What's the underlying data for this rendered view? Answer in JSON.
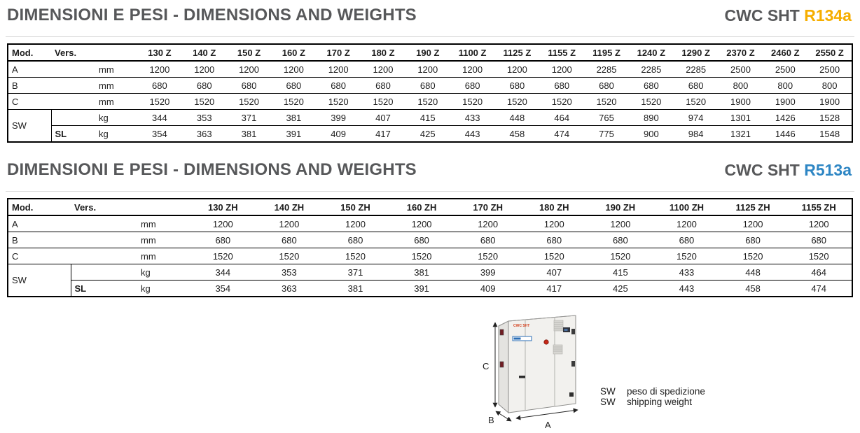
{
  "sections": [
    {
      "title": "DIMENSIONI E PESI - DIMENSIONS AND WEIGHTS",
      "product": "CWC SHT",
      "refrigerant": "R134a",
      "refrigerant_color": "#F6AE00",
      "table": {
        "col_mod": "Mod.",
        "col_vers": "Vers.",
        "models": [
          "130 Z",
          "140 Z",
          "150 Z",
          "160 Z",
          "170 Z",
          "180 Z",
          "190 Z",
          "1100 Z",
          "1125 Z",
          "1155 Z",
          "1195 Z",
          "1240 Z",
          "1290 Z",
          "2370 Z",
          "2460 Z",
          "2550 Z"
        ],
        "dimension_rows": [
          {
            "label": "A",
            "unit": "mm",
            "values": [
              1200,
              1200,
              1200,
              1200,
              1200,
              1200,
              1200,
              1200,
              1200,
              1200,
              2285,
              2285,
              2285,
              2500,
              2500,
              2500
            ]
          },
          {
            "label": "B",
            "unit": "mm",
            "values": [
              680,
              680,
              680,
              680,
              680,
              680,
              680,
              680,
              680,
              680,
              680,
              680,
              680,
              800,
              800,
              800
            ]
          },
          {
            "label": "C",
            "unit": "mm",
            "values": [
              1520,
              1520,
              1520,
              1520,
              1520,
              1520,
              1520,
              1520,
              1520,
              1520,
              1520,
              1520,
              1520,
              1900,
              1900,
              1900
            ]
          }
        ],
        "weight_group_label": "SW",
        "weight_rows": [
          {
            "version": "",
            "unit": "kg",
            "values": [
              344,
              353,
              371,
              381,
              399,
              407,
              415,
              433,
              448,
              464,
              765,
              890,
              974,
              1301,
              1426,
              1528
            ]
          },
          {
            "version": "SL",
            "unit": "kg",
            "values": [
              354,
              363,
              381,
              391,
              409,
              417,
              425,
              443,
              458,
              474,
              775,
              900,
              984,
              1321,
              1446,
              1548
            ]
          }
        ]
      }
    },
    {
      "title": "DIMENSIONI E PESI - DIMENSIONS AND WEIGHTS",
      "product": "CWC SHT",
      "refrigerant": "R513a",
      "refrigerant_color": "#2E86C4",
      "table": {
        "col_mod": "Mod.",
        "col_vers": "Vers.",
        "models": [
          "130 ZH",
          "140 ZH",
          "150 ZH",
          "160 ZH",
          "170 ZH",
          "180 ZH",
          "190 ZH",
          "1100 ZH",
          "1125 ZH",
          "1155 ZH"
        ],
        "dimension_rows": [
          {
            "label": "A",
            "unit": "mm",
            "values": [
              1200,
              1200,
              1200,
              1200,
              1200,
              1200,
              1200,
              1200,
              1200,
              1200
            ]
          },
          {
            "label": "B",
            "unit": "mm",
            "values": [
              680,
              680,
              680,
              680,
              680,
              680,
              680,
              680,
              680,
              680
            ]
          },
          {
            "label": "C",
            "unit": "mm",
            "values": [
              1520,
              1520,
              1520,
              1520,
              1520,
              1520,
              1520,
              1520,
              1520,
              1520
            ]
          }
        ],
        "weight_group_label": "SW",
        "weight_rows": [
          {
            "version": "",
            "unit": "kg",
            "values": [
              344,
              353,
              371,
              381,
              399,
              407,
              415,
              433,
              448,
              464
            ]
          },
          {
            "version": "SL",
            "unit": "kg",
            "values": [
              354,
              363,
              381,
              391,
              409,
              417,
              425,
              443,
              458,
              474
            ]
          }
        ]
      }
    }
  ],
  "legend": {
    "rows": [
      {
        "key": "SW",
        "text": "peso di spedizione"
      },
      {
        "key": "SW",
        "text": "shipping weight"
      }
    ]
  },
  "figure": {
    "dim_a": "A",
    "dim_b": "B",
    "dim_c": "C",
    "unit_label": "CWC SHT"
  }
}
